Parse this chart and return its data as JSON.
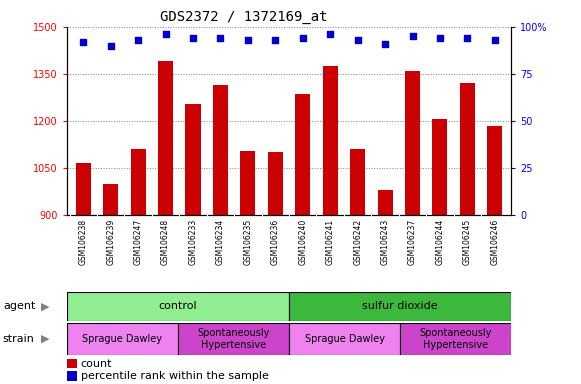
{
  "title": "GDS2372 / 1372169_at",
  "samples": [
    "GSM106238",
    "GSM106239",
    "GSM106247",
    "GSM106248",
    "GSM106233",
    "GSM106234",
    "GSM106235",
    "GSM106236",
    "GSM106240",
    "GSM106241",
    "GSM106242",
    "GSM106243",
    "GSM106237",
    "GSM106244",
    "GSM106245",
    "GSM106246"
  ],
  "bar_values": [
    1065,
    1000,
    1110,
    1390,
    1255,
    1315,
    1105,
    1100,
    1285,
    1375,
    1110,
    980,
    1360,
    1205,
    1320,
    1185
  ],
  "percentile_values": [
    92,
    90,
    93,
    96,
    94,
    94,
    93,
    93,
    94,
    96,
    93,
    91,
    95,
    94,
    94,
    93
  ],
  "bar_color": "#cc0000",
  "dot_color": "#0000cc",
  "ylim_left": [
    900,
    1500
  ],
  "ylim_right": [
    0,
    100
  ],
  "yticks_left": [
    900,
    1050,
    1200,
    1350,
    1500
  ],
  "yticks_right": [
    0,
    25,
    50,
    75,
    100
  ],
  "agent_groups": [
    {
      "label": "control",
      "start": 0,
      "end": 8,
      "color": "#90ee90"
    },
    {
      "label": "sulfur dioxide",
      "start": 8,
      "end": 16,
      "color": "#3cb83c"
    }
  ],
  "strain_groups": [
    {
      "label": "Sprague Dawley",
      "start": 0,
      "end": 4,
      "color": "#ee82ee"
    },
    {
      "label": "Spontaneously\nHypertensive",
      "start": 4,
      "end": 8,
      "color": "#dd66dd"
    },
    {
      "label": "Sprague Dawley",
      "start": 8,
      "end": 12,
      "color": "#ee82ee"
    },
    {
      "label": "Spontaneously\nHypertensive",
      "start": 12,
      "end": 16,
      "color": "#dd66dd"
    }
  ],
  "legend_count_color": "#cc0000",
  "legend_dot_color": "#0000cc",
  "title_fontsize": 10,
  "tick_fontsize": 7,
  "label_fontsize": 8,
  "bar_width": 0.55,
  "xtick_area_color": "#d0d0d0",
  "plot_bg_color": "#ffffff",
  "fig_bg_color": "#ffffff"
}
